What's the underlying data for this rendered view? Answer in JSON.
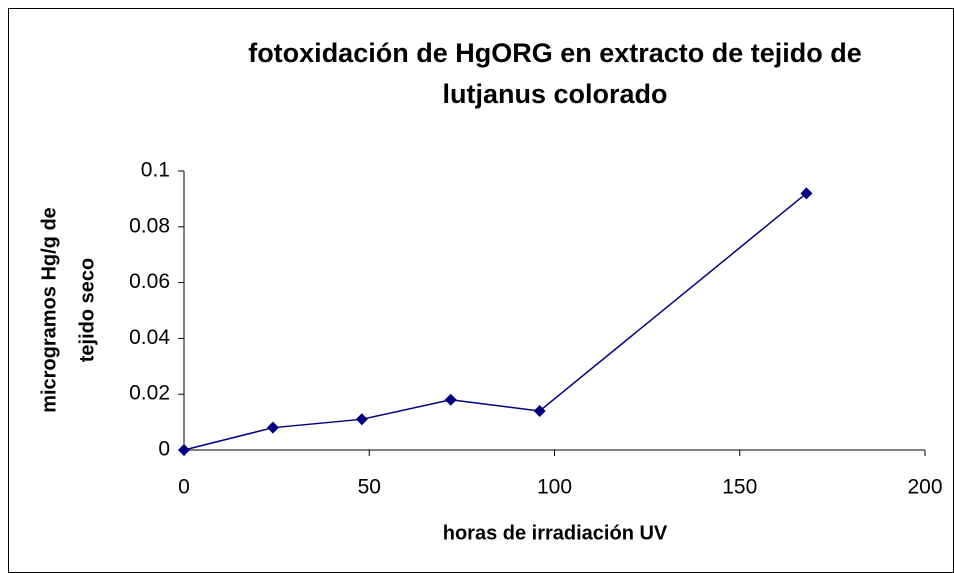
{
  "chart_data": {
    "type": "line",
    "title": [
      "fotoxidación de HgORG en extracto de tejido de",
      "lutjanus colorado"
    ],
    "x_label": "horas de irradiación UV",
    "y_label": [
      "microgramos Hg/g de",
      "tejido seco"
    ],
    "x": [
      0,
      24,
      48,
      72,
      96,
      168
    ],
    "series": [
      {
        "color": "#000080",
        "values": [
          0,
          0.008,
          0.011,
          0.018,
          0.014,
          0.092
        ]
      }
    ],
    "xlim": [
      0,
      200
    ],
    "xticks": [
      0,
      50,
      100,
      150,
      200
    ],
    "ylim": [
      0,
      0.1
    ],
    "yticks": [
      0,
      0.02,
      0.04,
      0.06,
      0.08,
      0.1
    ],
    "grid": false
  }
}
